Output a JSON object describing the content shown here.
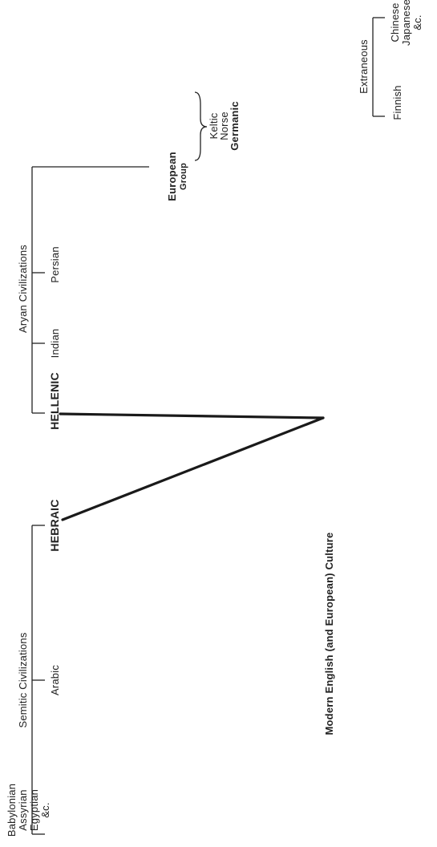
{
  "groups": {
    "semitic": {
      "heading": "Semitic Civilizations",
      "babylonian": [
        "Babylonian",
        "Assyrian",
        "Egyptian",
        "&c."
      ],
      "arabic": "Arabic",
      "hebraic": "HEBRAIC"
    },
    "aryan": {
      "heading": "Aryan Civilizations",
      "hellenic": "HELLENIC",
      "indian": "Indian",
      "persian": "Persian",
      "european": [
        "European",
        "Group"
      ],
      "european_sub": [
        "Keltic",
        "Norse",
        "Germanic"
      ]
    },
    "extraneous": {
      "heading": "Extraneous",
      "finnish": "Finnish",
      "chinese": [
        "Chinese",
        "Japanese",
        "&c."
      ]
    }
  },
  "result": "Modern English (and European) Culture"
}
